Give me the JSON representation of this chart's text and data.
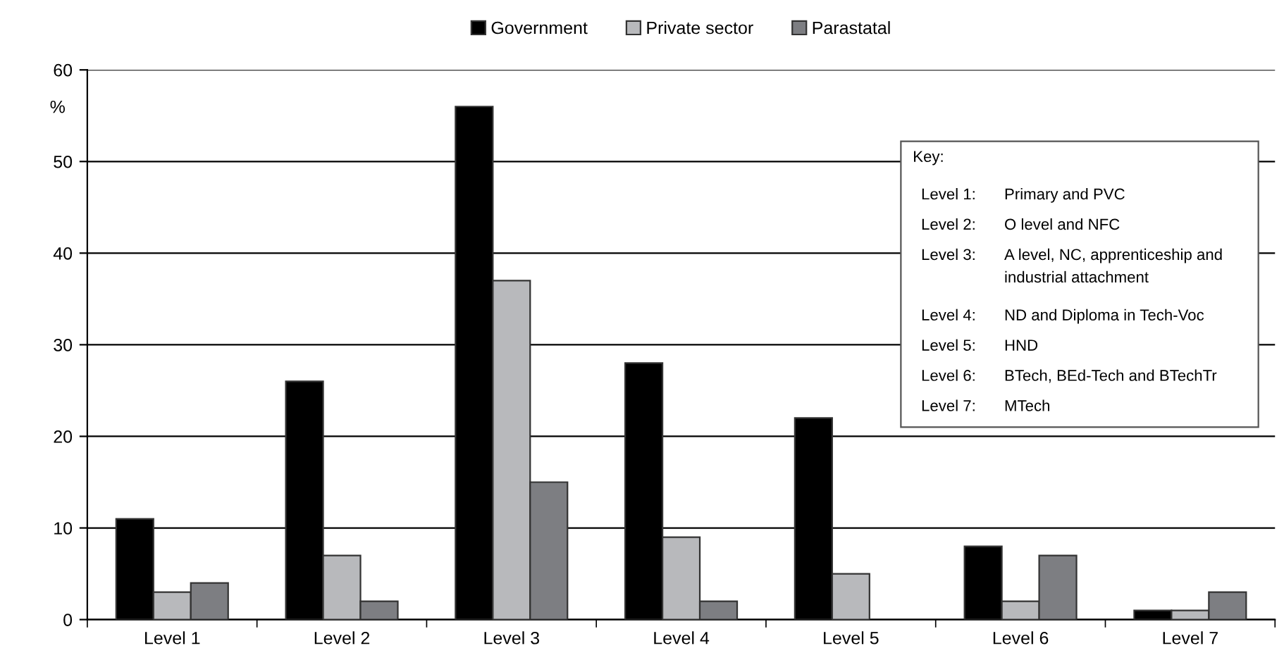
{
  "chart_data": {
    "type": "bar",
    "ylabel": "%",
    "categories": [
      "Level 1",
      "Level 2",
      "Level 3",
      "Level 4",
      "Level 5",
      "Level 6",
      "Level 7"
    ],
    "series": [
      {
        "name": "Government",
        "color": "#000000",
        "values": [
          11,
          26,
          56,
          28,
          22,
          8,
          1
        ]
      },
      {
        "name": "Private sector",
        "color": "#b8b9bc",
        "values": [
          3,
          7,
          37,
          9,
          5,
          2,
          1
        ]
      },
      {
        "name": "Parastatal",
        "color": "#7d7e82",
        "values": [
          4,
          2,
          15,
          2,
          0,
          7,
          3
        ]
      }
    ],
    "ylim": [
      0,
      60
    ],
    "yticks": [
      0,
      10,
      20,
      30,
      40,
      50,
      60
    ],
    "grid": "y",
    "legend": "top",
    "annotations": [
      "Key:",
      "Level 1:",
      "Primary and PVC",
      "Level 2:",
      "O level and NFC",
      "Level 3:",
      "A level, NC, apprenticeship and\nindustrial attachment",
      "Level 4:",
      "ND and Diploma in Tech-Voc",
      "Level 5:",
      "HND",
      "Level 6:",
      "BTech, BEd-Tech and BTechTr",
      "Level 7:",
      "MTech"
    ]
  }
}
